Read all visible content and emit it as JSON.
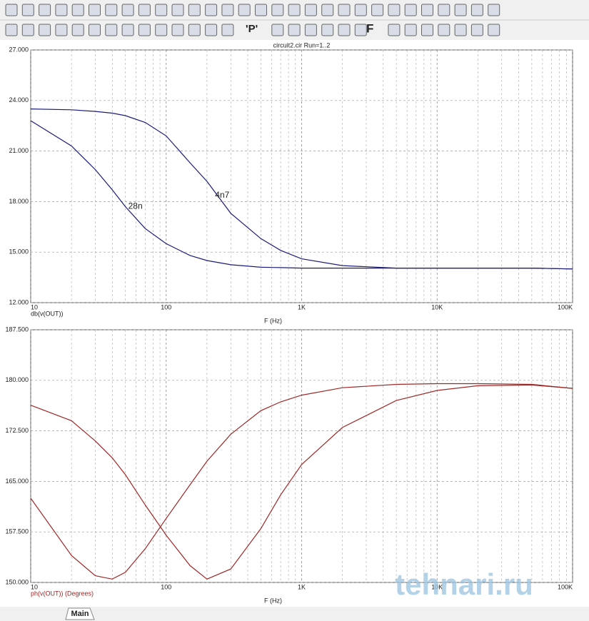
{
  "toolbar_text": [
    "'P'",
    "F"
  ],
  "tabs": [
    "Main"
  ],
  "watermark": "tehnari.ru",
  "chart_data": [
    {
      "type": "line",
      "title": "circuit2.cir Run=1..2",
      "xlabel": "F (Hz)",
      "ylabel": "db(v(OUT))",
      "label_color": "#222222",
      "xscale": "log",
      "grid": true,
      "x": [
        10,
        20,
        30,
        40,
        50,
        70,
        100,
        150,
        200,
        300,
        500,
        700,
        1000,
        2000,
        5000,
        10000,
        20000,
        50000,
        100000
      ],
      "xlim": [
        10,
        100000
      ],
      "xticks": [
        10,
        100,
        {
          "value": 1000,
          "label": "1K"
        },
        {
          "value": 10000,
          "label": "10K"
        },
        {
          "value": 100000,
          "label": "100K"
        }
      ],
      "ylim": [
        12,
        27
      ],
      "yticks": [
        {
          "value": 12,
          "label": "12.000"
        },
        {
          "value": 15,
          "label": "15.000"
        },
        {
          "value": 18,
          "label": "18.000"
        },
        {
          "value": 21,
          "label": "21.000"
        },
        {
          "value": 24,
          "label": "24.000"
        },
        {
          "value": 27,
          "label": "27.000"
        }
      ],
      "series": [
        {
          "name": "4n7",
          "color": "#1c1c78",
          "values": [
            23.5,
            23.45,
            23.35,
            23.25,
            23.1,
            22.7,
            21.9,
            20.3,
            19.2,
            17.3,
            15.8,
            15.1,
            14.6,
            14.2,
            14.05,
            14.05,
            14.05,
            14.05,
            14.0
          ]
        },
        {
          "name": "28n",
          "color": "#1c1c78",
          "values": [
            22.8,
            21.3,
            19.9,
            18.7,
            17.7,
            16.4,
            15.5,
            14.8,
            14.5,
            14.25,
            14.1,
            14.08,
            14.05,
            14.05,
            14.05,
            14.05,
            14.05,
            14.05,
            14.0
          ]
        }
      ]
    },
    {
      "type": "line",
      "xlabel": "F (Hz)",
      "ylabel": "ph(v(OUT)) (Degrees)",
      "label_color": "#b02020",
      "xscale": "log",
      "grid": true,
      "x": [
        10,
        20,
        30,
        40,
        50,
        70,
        100,
        150,
        200,
        300,
        500,
        700,
        1000,
        2000,
        5000,
        10000,
        20000,
        50000,
        100000
      ],
      "xlim": [
        10,
        100000
      ],
      "xticks": [
        10,
        100,
        {
          "value": 1000,
          "label": "1K"
        },
        {
          "value": 10000,
          "label": "10K"
        },
        {
          "value": 100000,
          "label": "100K"
        }
      ],
      "ylim": [
        150,
        187.5
      ],
      "yticks": [
        {
          "value": 150,
          "label": "150.000"
        },
        {
          "value": 157.5,
          "label": "157.500"
        },
        {
          "value": 165,
          "label": "165.000"
        },
        {
          "value": 172.5,
          "label": "172.500"
        },
        {
          "value": 180,
          "label": "180.000"
        },
        {
          "value": 187.5,
          "label": "187.500"
        }
      ],
      "series": [
        {
          "color": "#a02828",
          "values": [
            176.3,
            174,
            171,
            168.5,
            166,
            161.5,
            157,
            152.5,
            150.5,
            152,
            158,
            163,
            167.5,
            173,
            177,
            178.5,
            179.2,
            179.3,
            178.8
          ]
        },
        {
          "color": "#a02828",
          "values": [
            162.5,
            154,
            151,
            150.5,
            151.5,
            155,
            159.5,
            164.5,
            168,
            172,
            175.5,
            176.8,
            177.8,
            178.9,
            179.4,
            179.5,
            179.5,
            179.4,
            178.8
          ]
        }
      ]
    }
  ]
}
